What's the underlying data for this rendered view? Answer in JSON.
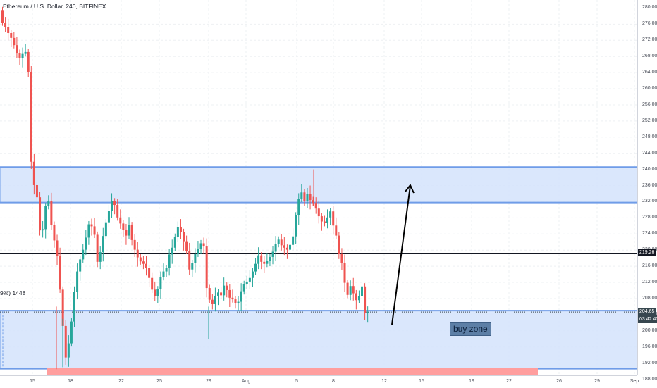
{
  "header": {
    "title": "Ethereum / U.S. Dollar, 240, BITFINEX"
  },
  "overlay": {
    "left_label": "9%) 1448",
    "buy_zone_label": "buy zone"
  },
  "badges": {
    "horizontal_line_value": "219.26",
    "last_price": "204.65",
    "countdown": "03:42:43",
    "last_price_color": "#37474f",
    "line_badge_color": "#131722"
  },
  "colors": {
    "up": "#26a69a",
    "down": "#ef5350",
    "zone_fill": "#d4e3fb",
    "zone_border": "#6f9ce8",
    "red_zone": "#ff9e9e"
  },
  "chart_data": {
    "type": "candlestick",
    "y_axis_ticks": [
      "280.00",
      "276.00",
      "272.00",
      "268.00",
      "264.00",
      "260.00",
      "256.00",
      "252.00",
      "248.00",
      "244.00",
      "240.00",
      "236.00",
      "232.00",
      "228.00",
      "224.00",
      "220.00",
      "216.00",
      "212.00",
      "208.00",
      "204.00",
      "200.00",
      "196.00",
      "192.00",
      "188.00"
    ],
    "x_axis_ticks": [
      "15",
      "18",
      "22",
      "25",
      "29",
      "Aug",
      "5",
      "8",
      "12",
      "15",
      "19",
      "22",
      "26",
      "29",
      "Sep"
    ],
    "ylim": [
      186,
      282
    ],
    "zones": [
      {
        "name": "upper-zone",
        "from": 231.8,
        "to": 240.6
      },
      {
        "name": "buy-zone",
        "from": 190.6,
        "to": 205.0
      }
    ],
    "red_zone": {
      "from": 186,
      "to": 190.8
    },
    "horizontal_line": 219.26,
    "last_price": 204.65,
    "closes": [
      276.4,
      275.3,
      273.8,
      272.6,
      270.8,
      268.9,
      267.6,
      268.8,
      269.1,
      264.2,
      241.9,
      236.1,
      233.1,
      224.9,
      225.2,
      230.9,
      232.2,
      226.3,
      222.4,
      218.6,
      210.2,
      201.2,
      193.4,
      196.9,
      202.3,
      209.6,
      214.7,
      217.7,
      220.1,
      223.1,
      226.4,
      225.9,
      223.8,
      217.1,
      219.5,
      223.5,
      226.9,
      229.8,
      232.1,
      231.2,
      228.1,
      226.6,
      225.1,
      223.6,
      226.2,
      222.5,
      220.1,
      218.2,
      217.2,
      216.6,
      215.5,
      213.1,
      210.2,
      208.6,
      210.3,
      213.3,
      214.7,
      215.5,
      218.9,
      220.6,
      223.3,
      225.7,
      224.5,
      222.2,
      219.8,
      215.2,
      216.8,
      219.1,
      220.3,
      221.7,
      220.9,
      210.6,
      207.7,
      206.6,
      208.7,
      209.5,
      208.8,
      211.2,
      210.1,
      208.2,
      207.8,
      206.8,
      207.2,
      209.8,
      211.6,
      212.2,
      213.1,
      214.7,
      216.6,
      218.7,
      217.1,
      216.6,
      217.3,
      218.3,
      219.6,
      221.5,
      222.6,
      221.2,
      220.6,
      220.1,
      221.3,
      223.4,
      228.6,
      232.7,
      234.3,
      232.2,
      234.0,
      232.4,
      231.7,
      230.3,
      228.4,
      227.1,
      226.7,
      228.1,
      229.6,
      226.1,
      223.6,
      219.1,
      216.9,
      211.9,
      208.9,
      211.1,
      209.3,
      207.6,
      208.6,
      211.0,
      204.5,
      204.65
    ]
  }
}
